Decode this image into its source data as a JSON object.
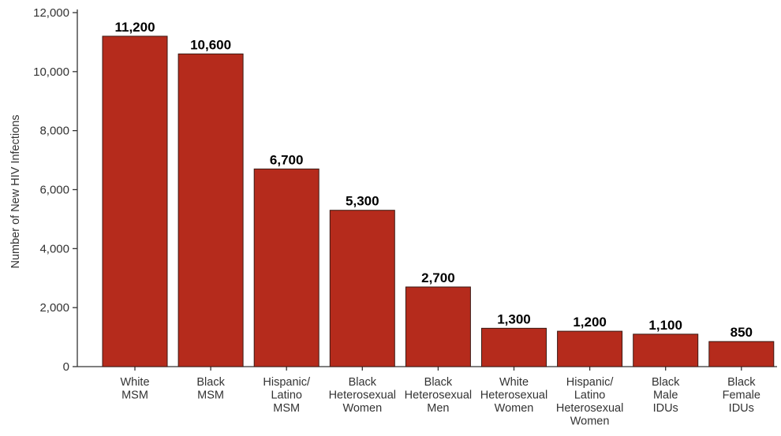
{
  "chart_data": {
    "type": "bar",
    "ylabel": "Number of New HIV Infections",
    "ylim": [
      0,
      12000
    ],
    "yticks": [
      "0",
      "2,000",
      "4,000",
      "6,000",
      "8,000",
      "10,000",
      "12,000"
    ],
    "grid": false,
    "bar_color": "#b52b1c",
    "categories": [
      [
        "White",
        "MSM"
      ],
      [
        "Black",
        "MSM"
      ],
      [
        "Hispanic/",
        "Latino",
        "MSM"
      ],
      [
        "Black",
        "Heterosexual",
        "Women"
      ],
      [
        "Black",
        "Heterosexual",
        "Men"
      ],
      [
        "White",
        "Heterosexual",
        "Women"
      ],
      [
        "Hispanic/",
        "Latino",
        "Heterosexual",
        "Women"
      ],
      [
        "Black",
        "Male",
        "IDUs"
      ],
      [
        "Black",
        "Female",
        "IDUs"
      ]
    ],
    "values": [
      11200,
      10600,
      6700,
      5300,
      2700,
      1300,
      1200,
      1100,
      850
    ],
    "value_labels": [
      "11,200",
      "10,600",
      "6,700",
      "5,300",
      "2,700",
      "1,300",
      "1,200",
      "1,100",
      "850"
    ]
  }
}
